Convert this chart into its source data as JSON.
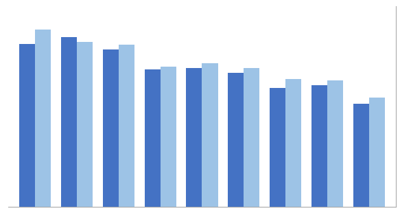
{
  "series1": [
    52.7,
    55.0,
    51.0,
    44.5,
    45.0,
    43.5,
    38.5,
    39.5,
    33.5
  ],
  "series2": [
    57.5,
    53.5,
    52.5,
    45.5,
    46.5,
    45.0,
    41.5,
    41.0,
    35.5
  ],
  "color1": "#4472C4",
  "color2": "#9DC3E6",
  "ylim_min": 0,
  "ylim_max": 65,
  "background_color": "#FFFFFF",
  "grid_color": "#C8C8C8",
  "bar_width": 0.38,
  "grid_step": 5,
  "border_color": "#AAAAAA"
}
